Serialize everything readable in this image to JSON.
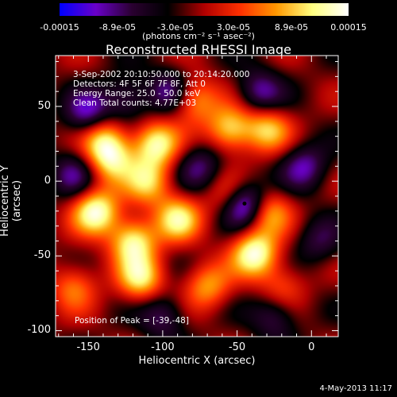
{
  "colorbar": {
    "ticks": [
      "-0.00015",
      "-8.9e-05",
      "-3.0e-05",
      "3.0e-05",
      "8.9e-05",
      "0.00015"
    ],
    "unit": "(photons cm⁻² s⁻¹ asec⁻²)",
    "range": [
      -0.00015,
      0.00015
    ],
    "colors": [
      "#0000ff",
      "#6a00c8",
      "#2a0030",
      "#000000",
      "#b00000",
      "#ff3000",
      "#ff9800",
      "#ffff80",
      "#ffffff"
    ]
  },
  "chart_data": {
    "type": "heatmap",
    "title": "Reconstructed RHESSI Image",
    "xlabel": "Heliocentric X (arcsec)",
    "ylabel": "Heliocentric Y (arcsec)",
    "xlim": [
      -172,
      18
    ],
    "ylim": [
      -104,
      84
    ],
    "xticks": [
      -150,
      -100,
      -50,
      0
    ],
    "yticks": [
      50,
      0,
      -50,
      -100
    ],
    "annotations": [
      "3-Sep-2002 20:10:50.000 to 20:14:20.000",
      "Detectors: 4F 5F 6F 7F 8F, Att 0",
      "Energy Range: 25.0 - 50.0 keV",
      "Clean    Total counts: 4.77E+03",
      "Position of Peak = [-39,-48]"
    ],
    "peak": [
      -39,
      -48
    ],
    "marker": [
      -45,
      -15
    ],
    "sources": [
      {
        "x": -145,
        "y": -20,
        "amp": 1.0
      },
      {
        "x": -135,
        "y": 15,
        "amp": 0.8
      },
      {
        "x": -140,
        "y": 30,
        "amp": 0.7
      },
      {
        "x": -105,
        "y": 25,
        "amp": 0.9
      },
      {
        "x": -110,
        "y": 0,
        "amp": 0.7
      },
      {
        "x": -120,
        "y": -40,
        "amp": 0.9
      },
      {
        "x": -90,
        "y": -25,
        "amp": 0.8
      },
      {
        "x": -80,
        "y": 55,
        "amp": 0.7
      },
      {
        "x": -55,
        "y": 35,
        "amp": 0.8
      },
      {
        "x": -30,
        "y": 35,
        "amp": 0.7
      },
      {
        "x": -38,
        "y": -48,
        "amp": 1.0
      },
      {
        "x": -30,
        "y": -20,
        "amp": 0.7
      },
      {
        "x": -115,
        "y": -65,
        "amp": 0.8
      },
      {
        "x": -70,
        "y": -70,
        "amp": 0.6
      },
      {
        "x": -55,
        "y": -10,
        "amp": 0.5
      },
      {
        "x": -160,
        "y": -70,
        "amp": 0.5
      },
      {
        "x": -20,
        "y": -70,
        "amp": 0.4
      },
      {
        "x": -45,
        "y": -15,
        "amp": -1.1
      },
      {
        "x": -150,
        "y": 45,
        "amp": -0.7
      },
      {
        "x": -95,
        "y": 60,
        "amp": -0.6
      },
      {
        "x": -35,
        "y": 60,
        "amp": -0.6
      },
      {
        "x": -125,
        "y": 55,
        "amp": -0.5
      },
      {
        "x": -100,
        "y": -90,
        "amp": -0.5
      },
      {
        "x": -25,
        "y": -90,
        "amp": -0.5
      },
      {
        "x": -5,
        "y": 10,
        "amp": -0.6
      },
      {
        "x": -75,
        "y": 10,
        "amp": -0.5
      },
      {
        "x": -160,
        "y": 5,
        "amp": -0.5
      },
      {
        "x": 5,
        "y": -40,
        "amp": -0.4
      }
    ]
  },
  "footer": {
    "date": "4-May-2013 11:17"
  }
}
